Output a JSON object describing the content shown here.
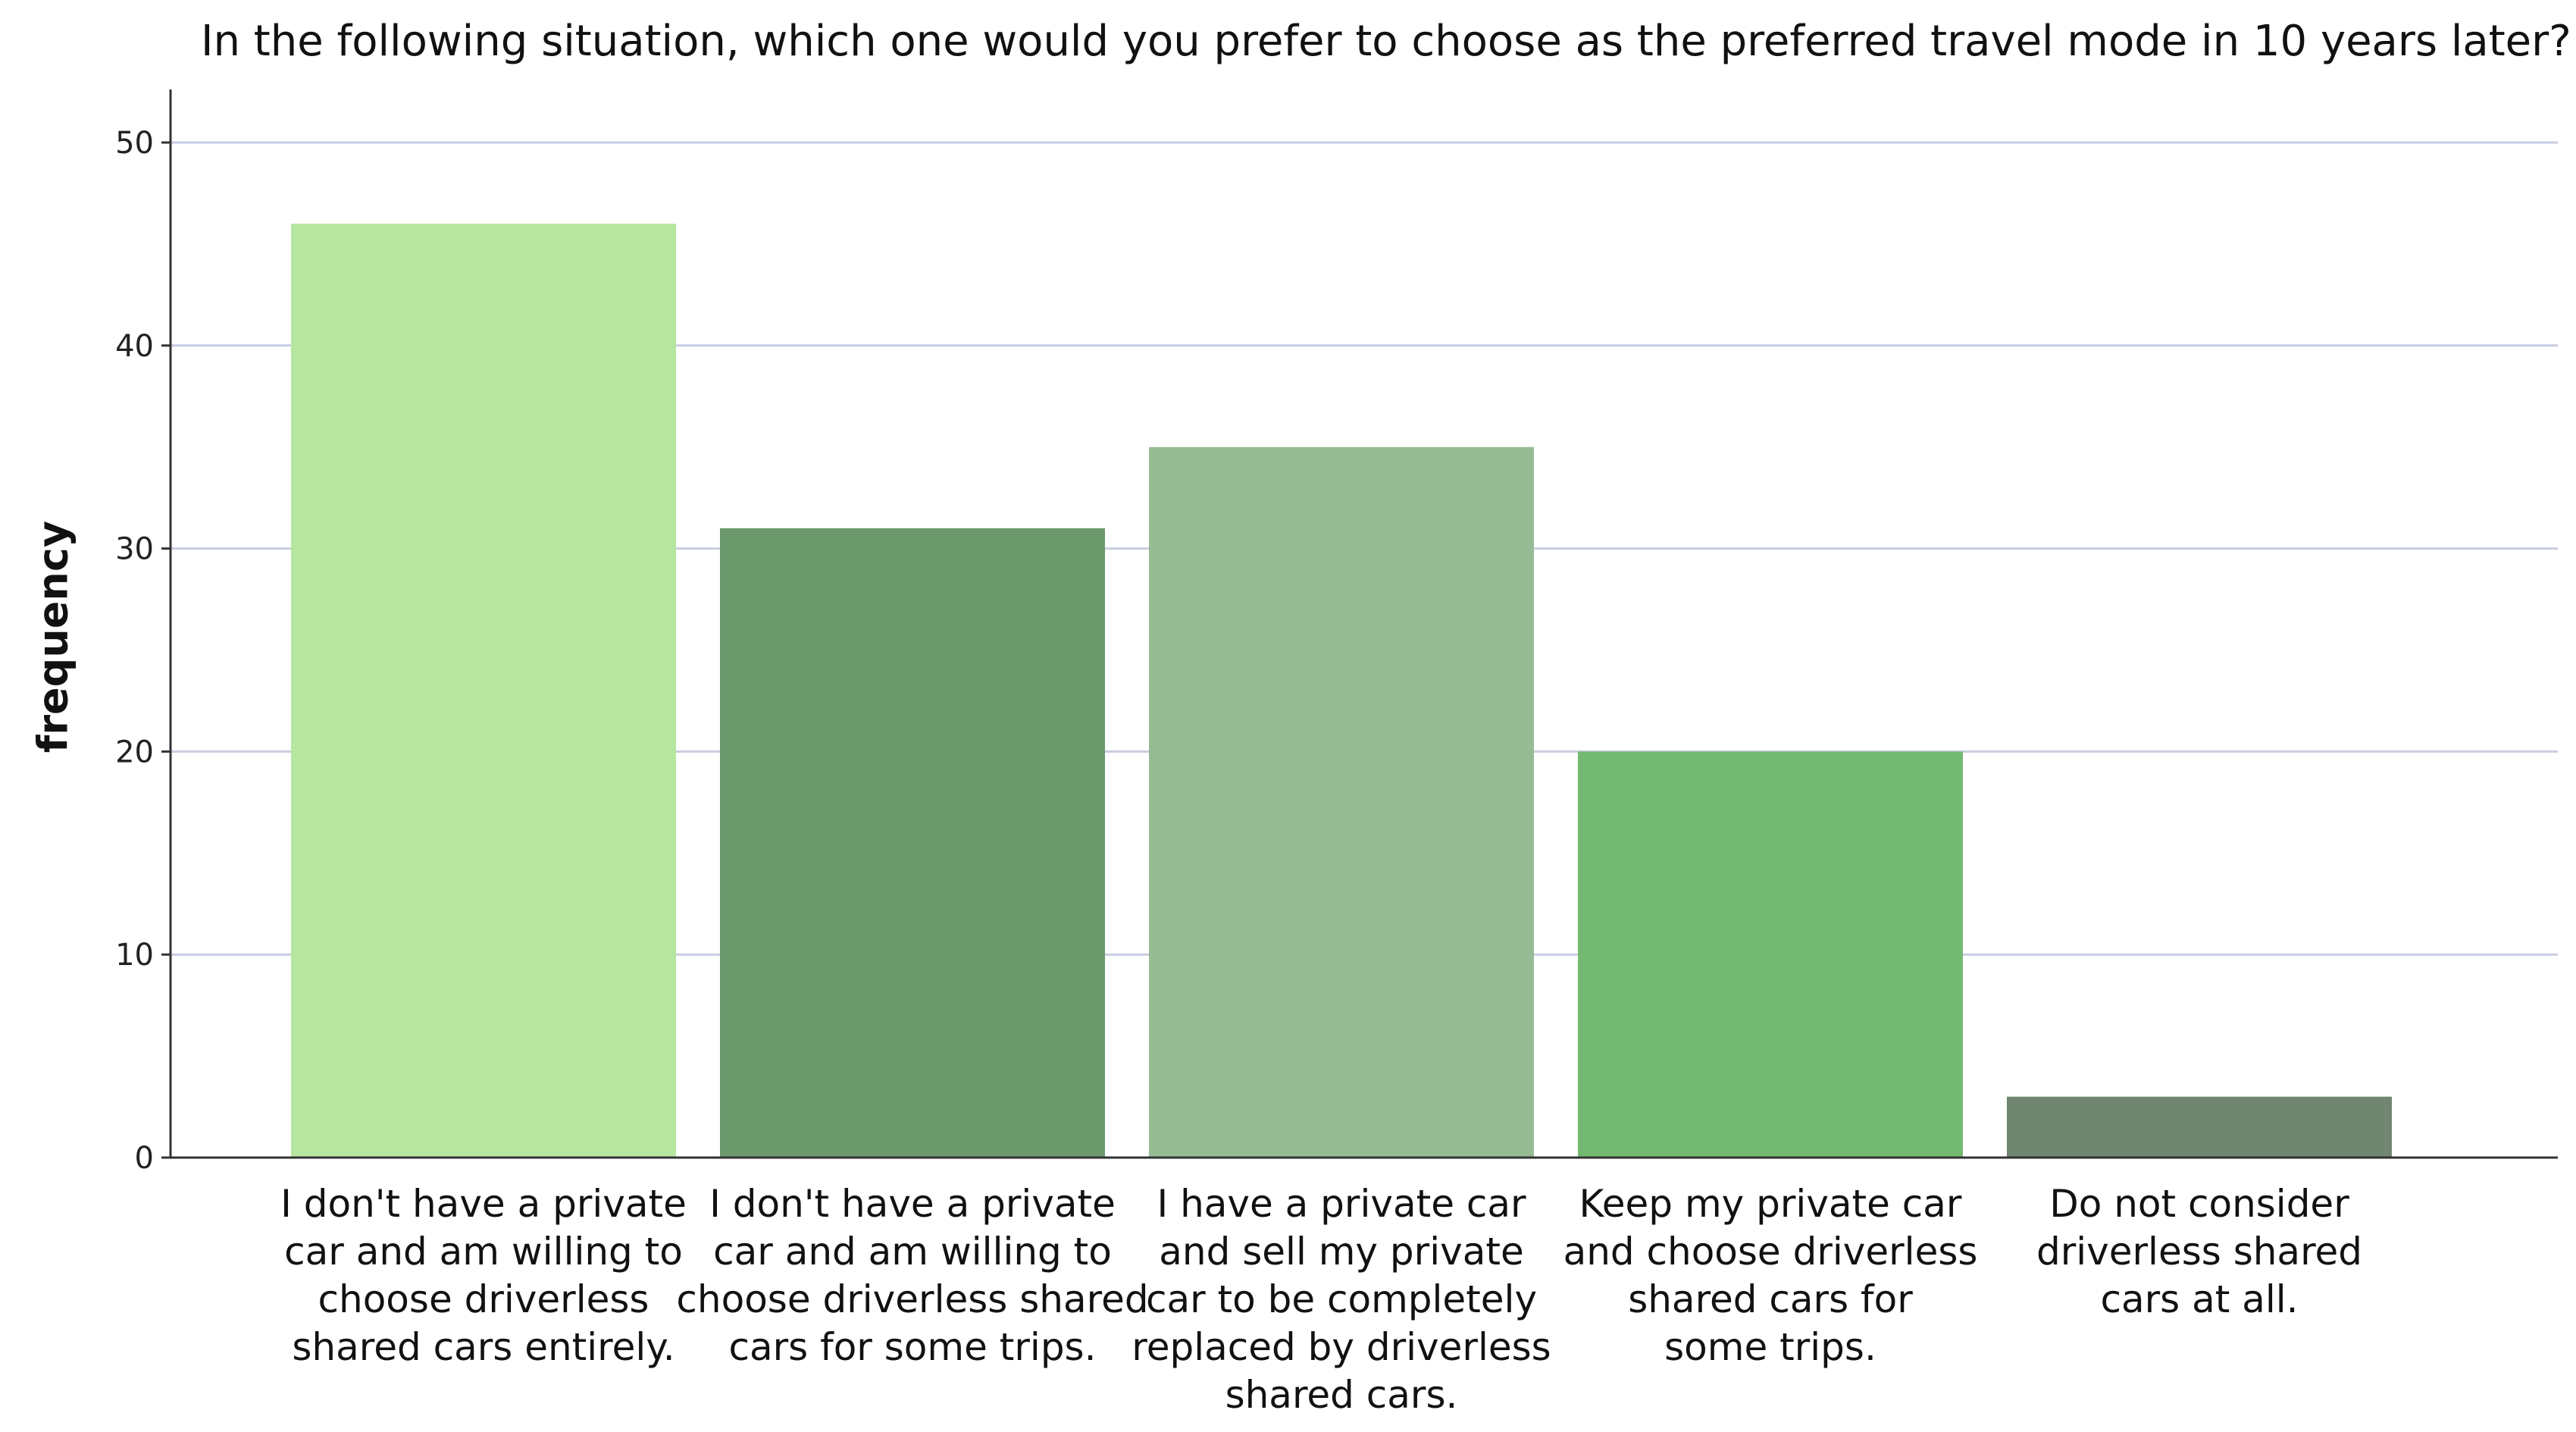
{
  "chart_data": {
    "type": "bar",
    "title": "In the following situation, which one would you prefer to choose as the preferred travel mode in 10 years later?",
    "xlabel": "",
    "ylabel": "frequency",
    "ylim": [
      0,
      50
    ],
    "yticks": [
      0,
      10,
      20,
      30,
      40,
      50
    ],
    "grid": true,
    "legend": "none",
    "categories": [
      "I don't have a private car and am willing to choose driverless shared cars entirely.",
      "I don't have a private car and am willing to choose driverless shared cars for some trips.",
      "I have a private car and sell my private car to be completely replaced by driverless shared cars.",
      "Keep my private car and choose driverless shared cars for some trips.",
      "Do not consider driverless shared cars at all."
    ],
    "category_lines": [
      [
        "I don't have a private",
        "car and am willing to",
        "choose driverless",
        "shared cars entirely."
      ],
      [
        "I don't have a private",
        "car and am willing to",
        "choose driverless shared",
        "cars for some trips."
      ],
      [
        "I have a private car",
        "and sell my private",
        "car to be completely",
        "replaced by driverless",
        "shared cars."
      ],
      [
        "Keep my private car",
        "and choose driverless",
        "shared cars for",
        "some trips."
      ],
      [
        "Do not consider",
        "driverless shared",
        "cars at all."
      ]
    ],
    "values": [
      46,
      31,
      35,
      20,
      3
    ],
    "colors": [
      "#b7e6a1",
      "#6b996c",
      "#95bc95",
      "#73b972",
      "#718670"
    ],
    "grid_color": "#c9cde0",
    "axis_color": "#333333"
  }
}
